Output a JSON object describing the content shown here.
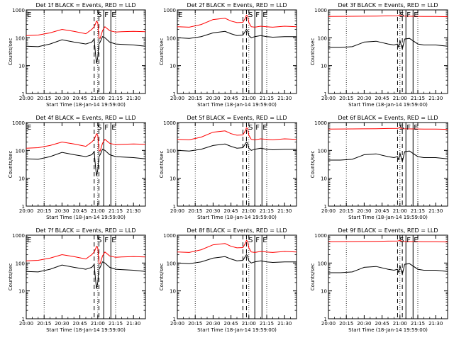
{
  "figure": {
    "ylabel": "Counts/sec",
    "xlabel": "Start Time (18-Jan-14 19:59:00)",
    "x_tick_labels": [
      "20:00",
      "20:15",
      "20:30",
      "20:45",
      "21:00",
      "21:15",
      "21:30"
    ],
    "x_tick_minutes": [
      0,
      15,
      30,
      45,
      60,
      75,
      90
    ],
    "y_tick_labels": [
      "1",
      "10",
      "100",
      "1000"
    ],
    "y_tick_values": [
      1,
      10,
      100,
      1000
    ],
    "colors": {
      "events": "#000000",
      "lld": "#ff0000",
      "axis": "#000000"
    }
  },
  "chart_data": [
    {
      "type": "line",
      "title": "Det 1f BLACK = Events, RED = LLD",
      "x_range_min": [
        0,
        100
      ],
      "ylim": [
        1,
        1000
      ],
      "yscale": "log",
      "markers": [
        {
          "label": "E",
          "x": 0
        },
        {
          "label": "S",
          "x": 59
        },
        {
          "label": "F",
          "x": 65
        },
        {
          "label": "E",
          "x": 71
        }
      ],
      "dashed_x": [
        57,
        61
      ],
      "solid_x": [
        65,
        71
      ],
      "dotted_x": [
        15,
        60,
        75
      ],
      "series": [
        {
          "name": "LLD",
          "color": "#ff0000",
          "x": [
            0,
            10,
            20,
            30,
            40,
            50,
            55,
            57,
            58,
            59,
            60,
            61,
            62,
            64,
            66,
            70,
            75,
            80,
            90,
            100
          ],
          "y": [
            120,
            125,
            150,
            200,
            170,
            140,
            200,
            250,
            310,
            400,
            350,
            100,
            95,
            180,
            250,
            180,
            160,
            165,
            170,
            165
          ]
        },
        {
          "name": "Events",
          "color": "#000000",
          "x": [
            0,
            10,
            20,
            30,
            40,
            50,
            55,
            57,
            58,
            59,
            60,
            61,
            62,
            64,
            66,
            70,
            75,
            80,
            90,
            100
          ],
          "y": [
            50,
            48,
            60,
            85,
            70,
            60,
            70,
            90,
            30,
            12,
            20,
            60,
            70,
            110,
            100,
            70,
            60,
            58,
            55,
            50
          ]
        }
      ]
    },
    {
      "type": "line",
      "title": "Det 2f BLACK = Events, RED = LLD",
      "x_range_min": [
        0,
        100
      ],
      "ylim": [
        1,
        1000
      ],
      "yscale": "log",
      "markers": [
        {
          "label": "E",
          "x": 0
        },
        {
          "label": "S",
          "x": 59
        },
        {
          "label": "F",
          "x": 65
        },
        {
          "label": "E",
          "x": 71
        }
      ],
      "dashed_x": [
        55,
        58
      ],
      "solid_x": [
        65,
        71
      ],
      "dotted_x": [
        15,
        60,
        75
      ],
      "series": [
        {
          "name": "LLD",
          "color": "#ff0000",
          "x": [
            0,
            10,
            20,
            30,
            40,
            45,
            50,
            55,
            57,
            58,
            59,
            60,
            62,
            65,
            70,
            75,
            80,
            90,
            100
          ],
          "y": [
            250,
            240,
            300,
            450,
            500,
            400,
            350,
            360,
            500,
            650,
            600,
            350,
            250,
            240,
            260,
            250,
            240,
            260,
            250
          ]
        },
        {
          "name": "Events",
          "color": "#000000",
          "x": [
            0,
            10,
            20,
            30,
            40,
            45,
            50,
            55,
            57,
            58,
            59,
            60,
            62,
            65,
            70,
            75,
            80,
            90,
            100
          ],
          "y": [
            100,
            95,
            110,
            150,
            170,
            140,
            120,
            125,
            170,
            200,
            180,
            120,
            100,
            110,
            120,
            110,
            105,
            110,
            110
          ]
        }
      ]
    },
    {
      "type": "line",
      "title": "Det 3f BLACK = Events, RED = LLD",
      "x_range_min": [
        0,
        100
      ],
      "ylim": [
        1,
        1000
      ],
      "yscale": "log",
      "markers": [
        {
          "label": "S",
          "x": 59
        },
        {
          "label": "F",
          "x": 65
        },
        {
          "label": "E",
          "x": 71
        }
      ],
      "dashed_x": [
        58,
        62
      ],
      "solid_x": [
        65,
        71
      ],
      "dotted_x": [
        15,
        60,
        75
      ],
      "series": [
        {
          "name": "LLD",
          "color": "#ff0000",
          "x": [
            0,
            20,
            40,
            50,
            58,
            60,
            62,
            70,
            80,
            90,
            100
          ],
          "y": [
            580,
            590,
            600,
            610,
            620,
            650,
            600,
            590,
            580,
            580,
            570
          ]
        },
        {
          "name": "Events",
          "color": "#000000",
          "x": [
            0,
            10,
            20,
            30,
            40,
            50,
            55,
            58,
            59,
            60,
            62,
            64,
            68,
            75,
            80,
            90,
            100
          ],
          "y": [
            45,
            45,
            48,
            70,
            75,
            60,
            55,
            60,
            45,
            80,
            40,
            90,
            95,
            60,
            55,
            55,
            50
          ]
        }
      ]
    },
    {
      "type": "line",
      "title": "Det 4f BLACK = Events, RED = LLD",
      "x_range_min": [
        0,
        100
      ],
      "ylim": [
        1,
        1000
      ],
      "yscale": "log",
      "markers": [
        {
          "label": "E",
          "x": 0
        },
        {
          "label": "S",
          "x": 59
        },
        {
          "label": "F",
          "x": 65
        },
        {
          "label": "E",
          "x": 71
        }
      ],
      "dashed_x": [
        57,
        61
      ],
      "solid_x": [
        65,
        71
      ],
      "dotted_x": [
        15,
        60,
        75
      ],
      "series": [
        {
          "name": "LLD",
          "color": "#ff0000",
          "x": [
            0,
            10,
            20,
            30,
            40,
            50,
            55,
            57,
            58,
            59,
            60,
            61,
            62,
            64,
            66,
            70,
            75,
            80,
            90,
            100
          ],
          "y": [
            120,
            125,
            150,
            200,
            170,
            140,
            200,
            250,
            310,
            400,
            350,
            100,
            95,
            180,
            250,
            180,
            160,
            165,
            170,
            165
          ]
        },
        {
          "name": "Events",
          "color": "#000000",
          "x": [
            0,
            10,
            20,
            30,
            40,
            50,
            55,
            57,
            58,
            59,
            60,
            61,
            62,
            64,
            66,
            70,
            75,
            80,
            90,
            100
          ],
          "y": [
            50,
            48,
            60,
            85,
            70,
            60,
            70,
            90,
            30,
            12,
            20,
            60,
            70,
            110,
            100,
            70,
            60,
            58,
            55,
            50
          ]
        }
      ]
    },
    {
      "type": "line",
      "title": "Det 5f BLACK = Events, RED = LLD",
      "x_range_min": [
        0,
        100
      ],
      "ylim": [
        1,
        1000
      ],
      "yscale": "log",
      "markers": [
        {
          "label": "S",
          "x": 59
        },
        {
          "label": "F",
          "x": 65
        },
        {
          "label": "E",
          "x": 71
        }
      ],
      "dashed_x": [
        55,
        58
      ],
      "solid_x": [
        65,
        71
      ],
      "dotted_x": [
        15,
        60,
        75
      ],
      "series": [
        {
          "name": "LLD",
          "color": "#ff0000",
          "x": [
            0,
            10,
            20,
            30,
            40,
            45,
            50,
            55,
            57,
            58,
            59,
            60,
            62,
            65,
            70,
            75,
            80,
            90,
            100
          ],
          "y": [
            250,
            240,
            300,
            450,
            500,
            400,
            350,
            360,
            500,
            650,
            600,
            350,
            250,
            240,
            260,
            250,
            240,
            260,
            250
          ]
        },
        {
          "name": "Events",
          "color": "#000000",
          "x": [
            0,
            10,
            20,
            30,
            40,
            45,
            50,
            55,
            57,
            58,
            59,
            60,
            62,
            65,
            70,
            75,
            80,
            90,
            100
          ],
          "y": [
            100,
            95,
            110,
            150,
            170,
            140,
            120,
            125,
            170,
            200,
            180,
            120,
            100,
            110,
            120,
            110,
            105,
            110,
            110
          ]
        }
      ]
    },
    {
      "type": "line",
      "title": "Det 6f BLACK = Events, RED = LLD",
      "x_range_min": [
        0,
        100
      ],
      "ylim": [
        1,
        1000
      ],
      "yscale": "log",
      "markers": [
        {
          "label": "S",
          "x": 59
        },
        {
          "label": "F",
          "x": 65
        },
        {
          "label": "E",
          "x": 71
        }
      ],
      "dashed_x": [
        58,
        62
      ],
      "solid_x": [
        65,
        71
      ],
      "dotted_x": [
        15,
        60,
        75
      ],
      "series": [
        {
          "name": "LLD",
          "color": "#ff0000",
          "x": [
            0,
            20,
            40,
            50,
            58,
            60,
            62,
            70,
            80,
            90,
            100
          ],
          "y": [
            580,
            590,
            600,
            610,
            620,
            650,
            600,
            590,
            580,
            580,
            570
          ]
        },
        {
          "name": "Events",
          "color": "#000000",
          "x": [
            0,
            10,
            20,
            30,
            40,
            50,
            55,
            58,
            59,
            60,
            62,
            64,
            68,
            75,
            80,
            90,
            100
          ],
          "y": [
            45,
            45,
            48,
            70,
            75,
            60,
            55,
            60,
            45,
            80,
            40,
            90,
            95,
            60,
            55,
            55,
            50
          ]
        }
      ]
    },
    {
      "type": "line",
      "title": "Det 7f BLACK = Events, RED = LLD",
      "x_range_min": [
        0,
        100
      ],
      "ylim": [
        1,
        1000
      ],
      "yscale": "log",
      "markers": [
        {
          "label": "E",
          "x": 0
        },
        {
          "label": "S",
          "x": 59
        },
        {
          "label": "F",
          "x": 65
        },
        {
          "label": "E",
          "x": 71
        }
      ],
      "dashed_x": [
        57,
        61
      ],
      "solid_x": [
        65,
        71
      ],
      "dotted_x": [
        15,
        60,
        75
      ],
      "series": [
        {
          "name": "LLD",
          "color": "#ff0000",
          "x": [
            0,
            10,
            20,
            30,
            40,
            50,
            55,
            57,
            58,
            59,
            60,
            61,
            62,
            64,
            66,
            70,
            75,
            80,
            90,
            100
          ],
          "y": [
            120,
            125,
            150,
            200,
            170,
            140,
            200,
            250,
            310,
            400,
            350,
            100,
            95,
            180,
            250,
            180,
            160,
            165,
            170,
            165
          ]
        },
        {
          "name": "Events",
          "color": "#000000",
          "x": [
            0,
            10,
            20,
            30,
            40,
            50,
            55,
            57,
            58,
            59,
            60,
            61,
            62,
            64,
            66,
            70,
            75,
            80,
            90,
            100
          ],
          "y": [
            50,
            48,
            60,
            85,
            70,
            60,
            70,
            90,
            30,
            12,
            20,
            60,
            70,
            110,
            100,
            70,
            60,
            58,
            55,
            50
          ]
        }
      ]
    },
    {
      "type": "line",
      "title": "Det 8f BLACK = Events, RED = LLD",
      "x_range_min": [
        0,
        100
      ],
      "ylim": [
        1,
        1000
      ],
      "yscale": "log",
      "markers": [
        {
          "label": "S",
          "x": 59
        },
        {
          "label": "F",
          "x": 65
        },
        {
          "label": "E",
          "x": 71
        }
      ],
      "dashed_x": [
        55,
        58
      ],
      "solid_x": [
        65,
        71
      ],
      "dotted_x": [
        15,
        60,
        75
      ],
      "series": [
        {
          "name": "LLD",
          "color": "#ff0000",
          "x": [
            0,
            10,
            20,
            30,
            40,
            45,
            50,
            55,
            57,
            58,
            59,
            60,
            62,
            65,
            70,
            75,
            80,
            90,
            100
          ],
          "y": [
            250,
            240,
            300,
            450,
            500,
            400,
            350,
            360,
            500,
            650,
            600,
            350,
            250,
            240,
            260,
            250,
            240,
            260,
            250
          ]
        },
        {
          "name": "Events",
          "color": "#000000",
          "x": [
            0,
            10,
            20,
            30,
            40,
            45,
            50,
            55,
            57,
            58,
            59,
            60,
            62,
            65,
            70,
            75,
            80,
            90,
            100
          ],
          "y": [
            100,
            95,
            110,
            150,
            170,
            140,
            120,
            125,
            170,
            200,
            180,
            120,
            100,
            110,
            120,
            110,
            105,
            110,
            110
          ]
        }
      ]
    },
    {
      "type": "line",
      "title": "Det 9f BLACK = Events, RED = LLD",
      "x_range_min": [
        0,
        100
      ],
      "ylim": [
        1,
        1000
      ],
      "yscale": "log",
      "markers": [
        {
          "label": "S",
          "x": 59
        },
        {
          "label": "F",
          "x": 65
        },
        {
          "label": "E",
          "x": 71
        }
      ],
      "dashed_x": [
        58,
        62
      ],
      "solid_x": [
        65,
        71
      ],
      "dotted_x": [
        15,
        60,
        75
      ],
      "series": [
        {
          "name": "LLD",
          "color": "#ff0000",
          "x": [
            0,
            20,
            40,
            50,
            58,
            60,
            62,
            70,
            80,
            90,
            100
          ],
          "y": [
            580,
            590,
            600,
            610,
            620,
            650,
            600,
            590,
            580,
            580,
            570
          ]
        },
        {
          "name": "Events",
          "color": "#000000",
          "x": [
            0,
            10,
            20,
            30,
            40,
            50,
            55,
            58,
            59,
            60,
            62,
            64,
            68,
            75,
            80,
            90,
            100
          ],
          "y": [
            45,
            45,
            48,
            70,
            75,
            60,
            55,
            60,
            45,
            80,
            40,
            90,
            95,
            60,
            55,
            55,
            50
          ]
        }
      ]
    }
  ]
}
